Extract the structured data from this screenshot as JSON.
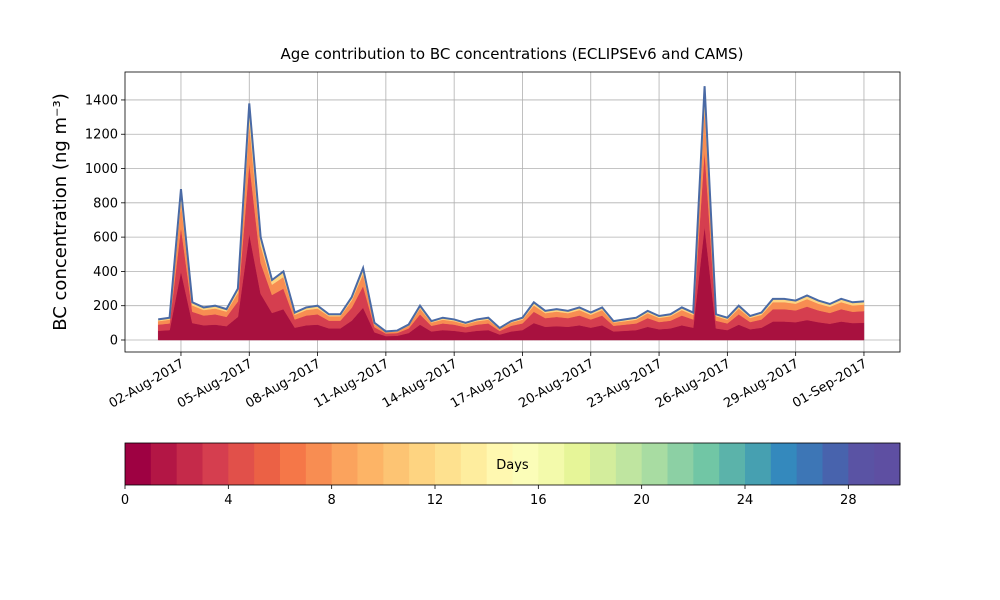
{
  "chart_data": {
    "type": "stacked_area",
    "title": "Age contribution to BC concentrations (ECLIPSEv6 and CAMS)",
    "y_label": "BC concentration (ng m⁻³)",
    "x": [
      "2017-08-01T00:00",
      "2017-08-01T12:00",
      "2017-08-02T00:00",
      "2017-08-02T12:00",
      "2017-08-03T00:00",
      "2017-08-03T12:00",
      "2017-08-04T00:00",
      "2017-08-04T12:00",
      "2017-08-05T00:00",
      "2017-08-05T12:00",
      "2017-08-06T00:00",
      "2017-08-06T12:00",
      "2017-08-07T00:00",
      "2017-08-07T12:00",
      "2017-08-08T00:00",
      "2017-08-08T12:00",
      "2017-08-09T00:00",
      "2017-08-09T12:00",
      "2017-08-10T00:00",
      "2017-08-10T12:00",
      "2017-08-11T00:00",
      "2017-08-11T12:00",
      "2017-08-12T00:00",
      "2017-08-12T12:00",
      "2017-08-13T00:00",
      "2017-08-13T12:00",
      "2017-08-14T00:00",
      "2017-08-14T12:00",
      "2017-08-15T00:00",
      "2017-08-15T12:00",
      "2017-08-16T00:00",
      "2017-08-16T12:00",
      "2017-08-17T00:00",
      "2017-08-17T12:00",
      "2017-08-18T00:00",
      "2017-08-18T12:00",
      "2017-08-19T00:00",
      "2017-08-19T12:00",
      "2017-08-20T00:00",
      "2017-08-20T12:00",
      "2017-08-21T00:00",
      "2017-08-21T12:00",
      "2017-08-22T00:00",
      "2017-08-22T12:00",
      "2017-08-23T00:00",
      "2017-08-23T12:00",
      "2017-08-24T00:00",
      "2017-08-24T12:00",
      "2017-08-25T00:00",
      "2017-08-25T12:00",
      "2017-08-26T00:00",
      "2017-08-26T12:00",
      "2017-08-27T00:00",
      "2017-08-27T12:00",
      "2017-08-28T00:00",
      "2017-08-28T12:00",
      "2017-08-29T00:00",
      "2017-08-29T12:00",
      "2017-08-30T00:00",
      "2017-08-30T12:00",
      "2017-08-31T00:00",
      "2017-08-31T12:00",
      "2017-09-01T00:00"
    ],
    "series": [
      {
        "color": "#a8113f",
        "values": [
          54,
          58,
          400,
          99,
          86,
          90,
          81,
          135,
          620,
          270,
          158,
          180,
          72,
          86,
          90,
          68,
          68,
          113,
          189,
          45,
          23,
          25,
          41,
          90,
          50,
          58,
          54,
          45,
          54,
          58,
          32,
          50,
          58,
          99,
          77,
          81,
          77,
          86,
          72,
          86,
          50,
          54,
          58,
          77,
          63,
          68,
          86,
          72,
          666,
          68,
          58,
          90,
          63,
          72,
          108,
          108,
          104,
          117,
          104,
          95,
          108,
          99,
          101
        ]
      },
      {
        "color": "#d53e4f",
        "values": [
          36,
          39,
          260,
          66,
          57,
          60,
          54,
          90,
          414,
          180,
          105,
          120,
          48,
          57,
          60,
          45,
          45,
          75,
          126,
          30,
          15,
          16,
          27,
          60,
          33,
          39,
          36,
          30,
          36,
          39,
          21,
          33,
          39,
          66,
          51,
          54,
          51,
          57,
          48,
          57,
          33,
          36,
          39,
          51,
          42,
          45,
          57,
          48,
          444,
          45,
          39,
          60,
          42,
          48,
          72,
          72,
          69,
          78,
          69,
          63,
          72,
          66,
          68
        ]
      },
      {
        "color": "#f88d52",
        "values": [
          20,
          22,
          150,
          37,
          32,
          34,
          31,
          51,
          235,
          102,
          60,
          68,
          27,
          32,
          34,
          26,
          26,
          43,
          71,
          17,
          8,
          9,
          15,
          34,
          19,
          22,
          20,
          17,
          20,
          22,
          12,
          19,
          22,
          37,
          29,
          31,
          29,
          32,
          27,
          32,
          19,
          20,
          22,
          29,
          24,
          26,
          32,
          27,
          252,
          26,
          22,
          34,
          24,
          27,
          41,
          41,
          39,
          44,
          39,
          36,
          41,
          37,
          38
        ]
      },
      {
        "color": "#fed481",
        "values": [
          10,
          11,
          70,
          18,
          15,
          16,
          14,
          24,
          111,
          48,
          27,
          32,
          13,
          15,
          16,
          11,
          11,
          19,
          34,
          8,
          4,
          5,
          7,
          16,
          8,
          11,
          10,
          8,
          10,
          11,
          5,
          8,
          11,
          18,
          13,
          14,
          13,
          15,
          13,
          15,
          8,
          10,
          11,
          13,
          11,
          11,
          15,
          13,
          118,
          11,
          11,
          16,
          11,
          13,
          19,
          19,
          18,
          21,
          18,
          16,
          19,
          18,
          18
        ]
      }
    ],
    "top_line_color": "#4a6aa5",
    "xlim": [
      "2017-07-30T13:00",
      "2017-09-02T14:00"
    ],
    "xticks": [
      {
        "value": "2017-08-02T00:00",
        "label": "02-Aug-2017"
      },
      {
        "value": "2017-08-05T00:00",
        "label": "05-Aug-2017"
      },
      {
        "value": "2017-08-08T00:00",
        "label": "08-Aug-2017"
      },
      {
        "value": "2017-08-11T00:00",
        "label": "11-Aug-2017"
      },
      {
        "value": "2017-08-14T00:00",
        "label": "14-Aug-2017"
      },
      {
        "value": "2017-08-17T00:00",
        "label": "17-Aug-2017"
      },
      {
        "value": "2017-08-20T00:00",
        "label": "20-Aug-2017"
      },
      {
        "value": "2017-08-23T00:00",
        "label": "23-Aug-2017"
      },
      {
        "value": "2017-08-26T00:00",
        "label": "26-Aug-2017"
      },
      {
        "value": "2017-08-29T00:00",
        "label": "29-Aug-2017"
      },
      {
        "value": "2017-09-01T00:00",
        "label": "01-Sep-2017"
      }
    ],
    "ylim": [
      -70,
      1563
    ],
    "yticks": [
      0,
      200,
      400,
      600,
      800,
      1000,
      1200,
      1400
    ],
    "grid": true,
    "colorbar": {
      "label": "Days",
      "lim": [
        0,
        30
      ],
      "ticks": [
        0,
        4,
        8,
        12,
        16,
        20,
        24,
        28
      ],
      "colors": [
        "#9e0142",
        "#b31645",
        "#c52a4a",
        "#d53e4f",
        "#e1504a",
        "#eb6145",
        "#f57748",
        "#f88d52",
        "#fba35d",
        "#fdb466",
        "#fdc473",
        "#fed481",
        "#fee18f",
        "#feed9e",
        "#fff8b0",
        "#fbfdb8",
        "#f3faab",
        "#e6f598",
        "#d3ed9c",
        "#bfe5a0",
        "#a8dca2",
        "#8cd0a4",
        "#71c6a5",
        "#5bb3aa",
        "#46a0b1",
        "#3489bd",
        "#3d76b6",
        "#4863ad",
        "#5a53a4",
        "#5e4fa2"
      ]
    }
  }
}
